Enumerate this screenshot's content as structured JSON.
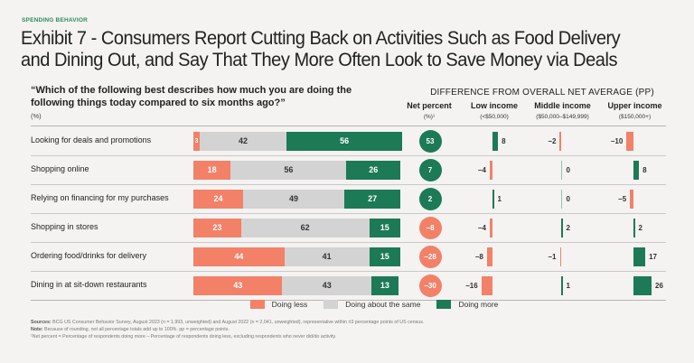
{
  "header": {
    "kicker": "SPENDING BEHAVIOR",
    "title": "Exhibit 7 - Consumers Report Cutting Back on Activities Such as Food Delivery and Dining Out, and Say That They More Often Look to Save Money via Deals"
  },
  "left_panel": {
    "question": "“Which of the following best describes how much you are doing the following things today compared to six months ago?”",
    "unit": "(%)"
  },
  "right_panel": {
    "diff_header": "DIFFERENCE FROM OVERALL NET AVERAGE (PP)",
    "columns": [
      {
        "label": "Net percent",
        "sub": "(%)¹"
      },
      {
        "label": "Low income",
        "sub": "(<$50,000)"
      },
      {
        "label": "Middle income",
        "sub": "($50,000–$149,999)"
      },
      {
        "label": "Upper income",
        "sub": "($150,000+)"
      }
    ]
  },
  "colors": {
    "doing_less": "#f28168",
    "doing_same": "#d3d3d3",
    "doing_more": "#1c7a56"
  },
  "legend": [
    {
      "label": "Doing less",
      "key": "doing_less"
    },
    {
      "label": "Doing about the same",
      "key": "doing_same"
    },
    {
      "label": "Doing more",
      "key": "doing_more"
    }
  ],
  "chart_data": {
    "type": "bar",
    "subtype": "stacked-horizontal-with-diff-columns",
    "title": "Exhibit 7 - Consumers Report Cutting Back on Activities Such as Food Delivery and Dining Out, and Say That They More Often Look to Save Money via Deals",
    "categories": [
      "Looking for deals and promotions",
      "Shopping online",
      "Relying on financing for my purchases",
      "Shopping in stores",
      "Ordering food/drinks for delivery",
      "Dining in at sit-down restaurants"
    ],
    "series": [
      {
        "name": "Doing less",
        "values": [
          3,
          18,
          24,
          23,
          44,
          43
        ]
      },
      {
        "name": "Doing about the same",
        "values": [
          42,
          56,
          49,
          62,
          41,
          43
        ]
      },
      {
        "name": "Doing more",
        "values": [
          56,
          26,
          27,
          15,
          15,
          13
        ]
      }
    ],
    "net_percent": [
      53,
      7,
      2,
      -8,
      -28,
      -30
    ],
    "difference_from_net_average_pp": {
      "Low income (<$50,000)": [
        8,
        -4,
        1,
        -4,
        -8,
        -16
      ],
      "Middle income ($50,000–$149,999)": [
        -2,
        0,
        0,
        2,
        -1,
        1
      ],
      "Upper income ($150,000+)": [
        -10,
        8,
        -5,
        2,
        17,
        26
      ]
    },
    "xlabel": "",
    "ylabel": "",
    "unit": "%",
    "legend_position": "bottom"
  },
  "footnotes": {
    "sources_label": "Sources:",
    "sources": "BCG US Consumer Behavior Survey, August 2023 (n = 1,993, unweighted) and August 2022 (n = 2,041, unweighted), representative within ±3 percentage points of US census.",
    "note_label": "Note:",
    "note": "Because of rounding, not all percentage totals add up to 100%. pp = percentage points.",
    "footnote1": "¹Net percent = Percentage of respondents doing more – Percentage of respondents doing less, excluding respondents who never did/do activity."
  }
}
